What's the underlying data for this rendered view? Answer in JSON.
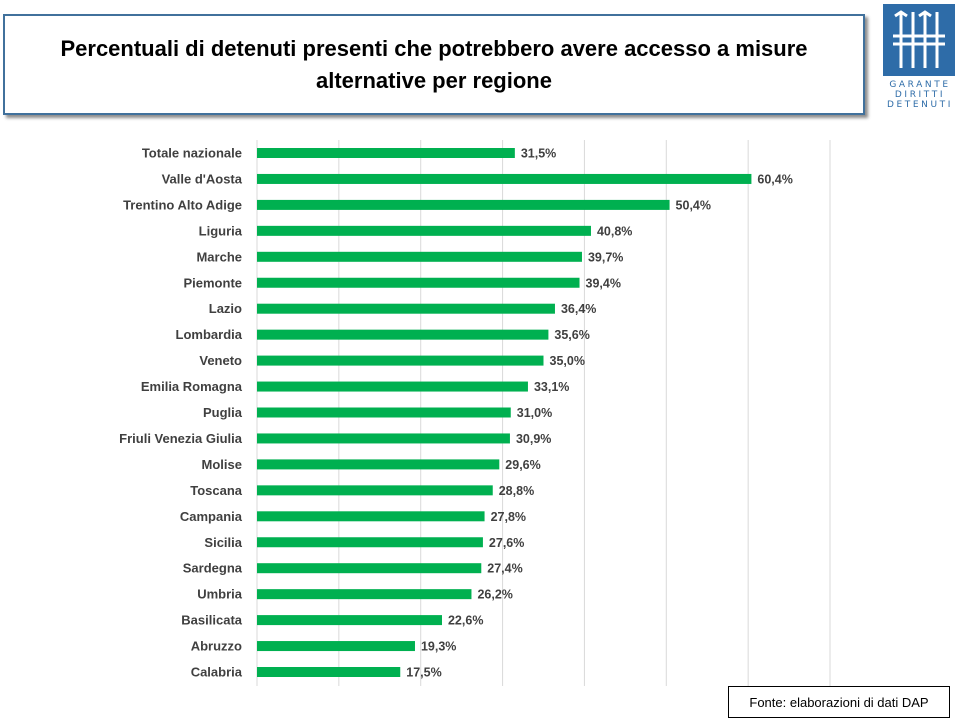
{
  "title": "Percentuali di detenuti presenti che  potrebbero avere accesso a misure\nalternative per regione",
  "logo": {
    "line1": "GARANTE",
    "line2": "DIRITTI",
    "line3": "DETENUTI"
  },
  "source": "Fonte: elaborazioni di dati DAP",
  "colors": {
    "bar": "#00b050",
    "grid": "#d9d9d9",
    "title_border": "#41719c",
    "logo": "#2e6ca8"
  },
  "chart_data": {
    "type": "bar",
    "orientation": "horizontal",
    "categories": [
      "Totale nazionale",
      "Valle d'Aosta",
      "Trentino Alto Adige",
      "Liguria",
      "Marche",
      "Piemonte",
      "Lazio",
      "Lombardia",
      "Veneto",
      "Emilia Romagna",
      "Puglia",
      "Friuli Venezia Giulia",
      "Molise",
      "Toscana",
      "Campania",
      "Sicilia",
      "Sardegna",
      "Umbria",
      "Basilicata",
      "Abruzzo",
      "Calabria"
    ],
    "values": [
      31.5,
      60.4,
      50.4,
      40.8,
      39.7,
      39.4,
      36.4,
      35.6,
      35.0,
      33.1,
      31.0,
      30.9,
      29.6,
      28.8,
      27.8,
      27.6,
      27.4,
      26.2,
      22.6,
      19.3,
      17.5
    ],
    "labels": [
      "31,5%",
      "60,4%",
      "50,4%",
      "40,8%",
      "39,7%",
      "39,4%",
      "36,4%",
      "35,6%",
      "35,0%",
      "33,1%",
      "31,0%",
      "30,9%",
      "29,6%",
      "28,8%",
      "27,8%",
      "27,6%",
      "27,4%",
      "26,2%",
      "22,6%",
      "19,3%",
      "17,5%"
    ],
    "xlim": [
      0,
      70
    ],
    "grid": true,
    "x_axis_tick_labels_visible": false
  }
}
